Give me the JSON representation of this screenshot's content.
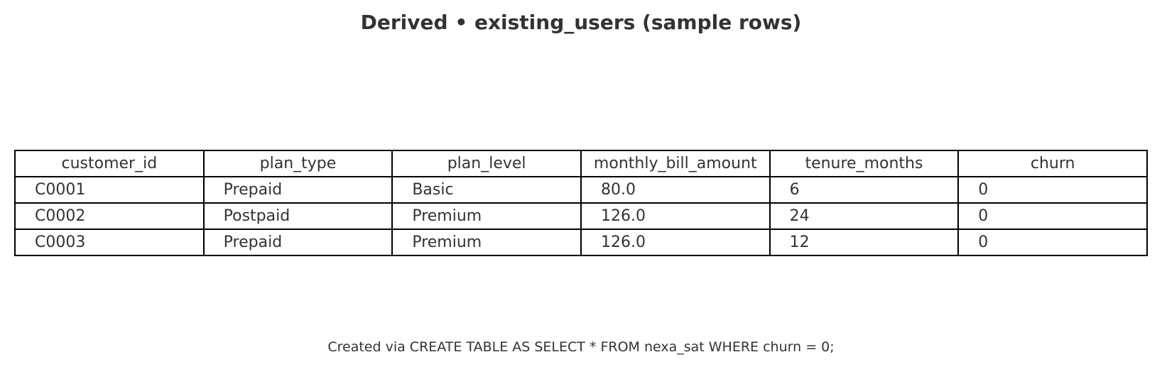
{
  "title": "Derived • existing_users (sample rows)",
  "footnote": "Created via CREATE TABLE AS SELECT * FROM nexa_sat WHERE churn = 0;",
  "chart_data": {
    "type": "table",
    "title": "Derived • existing_users (sample rows)",
    "columns": [
      "customer_id",
      "plan_type",
      "plan_level",
      "monthly_bill_amount",
      "tenure_months",
      "churn"
    ],
    "rows": [
      [
        "C0001",
        "Prepaid",
        "Basic",
        "80.0",
        "6",
        "0"
      ],
      [
        "C0002",
        "Postpaid",
        "Premium",
        "126.0",
        "24",
        "0"
      ],
      [
        "C0003",
        "Prepaid",
        "Premium",
        "126.0",
        "12",
        "0"
      ]
    ]
  },
  "colors": {
    "text": "#333333",
    "border": "#000000",
    "background": "#ffffff"
  }
}
